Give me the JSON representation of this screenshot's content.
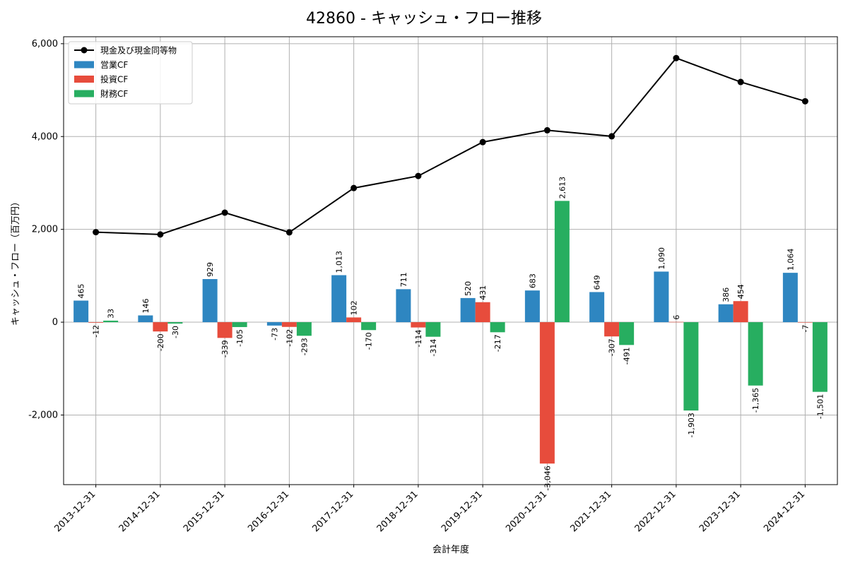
{
  "chart_data": {
    "type": "bar",
    "title": "42860 - キャッシュ・フロー推移",
    "xlabel": "会計年度",
    "ylabel": "キャッシュ・フロー（百万円）",
    "categories": [
      "2013-12-31",
      "2014-12-31",
      "2015-12-31",
      "2016-12-31",
      "2017-12-31",
      "2018-12-31",
      "2019-12-31",
      "2020-12-31",
      "2021-12-31",
      "2022-12-31",
      "2023-12-31",
      "2024-12-31"
    ],
    "ylim": [
      -3500,
      6150
    ],
    "yticks": [
      -2000,
      0,
      2000,
      4000,
      6000
    ],
    "ytick_labels": [
      "-2,000",
      "0",
      "2,000",
      "4,000",
      "6,000"
    ],
    "grid": true,
    "legend_position": "top-left",
    "series": [
      {
        "name": "営業CF",
        "kind": "bar",
        "color": "#2e86c1",
        "values": [
          465,
          146,
          929,
          -73,
          1013,
          711,
          520,
          683,
          649,
          1090,
          386,
          1064
        ],
        "labels": [
          "465",
          "146",
          "929",
          "-73",
          "1,013",
          "711",
          "520",
          "683",
          "649",
          "1,090",
          "386",
          "1,064"
        ]
      },
      {
        "name": "投資CF",
        "kind": "bar",
        "color": "#e74c3c",
        "values": [
          -12,
          -200,
          -339,
          -102,
          102,
          -114,
          431,
          -3046,
          -307,
          6,
          454,
          -7
        ],
        "labels": [
          "-12",
          "-200",
          "-339",
          "-102",
          "102",
          "-114",
          "431",
          "-3,046",
          "-307",
          "6",
          "454",
          "-7"
        ]
      },
      {
        "name": "財務CF",
        "kind": "bar",
        "color": "#27ae60",
        "values": [
          33,
          -30,
          -105,
          -293,
          -170,
          -314,
          -217,
          2613,
          -491,
          -1903,
          -1365,
          -1501
        ],
        "labels": [
          "33",
          "-30",
          "-105",
          "-293",
          "-170",
          "-314",
          "-217",
          "2,613",
          "-491",
          "-1,903",
          "-1,365",
          "-1,501"
        ]
      },
      {
        "name": "現金及び現金同等物",
        "kind": "line",
        "color": "#000000",
        "values": [
          1940,
          1890,
          2360,
          1935,
          2890,
          3150,
          3880,
          4135,
          4005,
          5690,
          5175,
          4760
        ]
      }
    ]
  }
}
